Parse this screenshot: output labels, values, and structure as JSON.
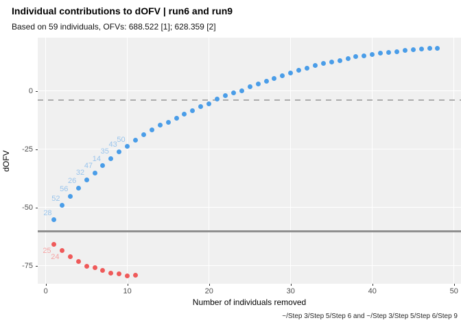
{
  "header": {
    "title": "Individual contributions to dOFV | run6 and run9",
    "subtitle": "Based on 59 individuals, OFVs: 688.522 [1]; 628.359 [2]"
  },
  "caption": "~/Step 3/Step 5/Step 6 and ~/Step 3/Step 5/Step 6/Step 9",
  "colors": {
    "panel_background": "#f0f0f0",
    "gridline": "#ffffff",
    "dashed_reference": "#ababab",
    "solid_reference": "#8f8f8f",
    "blue_point": "#4a9de8",
    "blue_label": "#99c4ec",
    "red_point": "#ef5a5a",
    "red_label": "#f5a3a3",
    "tick_text": "#4d4d4d"
  },
  "chart_data": {
    "type": "scatter",
    "title": "Individual contributions to dOFV | run6 and run9",
    "subtitle": "Based on 59 individuals, OFVs: 688.522 [1]; 628.359 [2]",
    "xlabel": "Number of individuals removed",
    "ylabel": "dOFV",
    "xlim": [
      -0.98,
      50.86
    ],
    "ylim": [
      -82.7,
      22.85
    ],
    "x_ticks": [
      0,
      10,
      20,
      30,
      40,
      50
    ],
    "y_ticks": [
      0,
      -25,
      -50,
      -75
    ],
    "grid": "major-only, white on gray panel",
    "legend": "none",
    "reference_lines": [
      {
        "orientation": "horizontal",
        "value": -3.84,
        "style": "dashed",
        "color": "#ababab",
        "meaning": "significance threshold"
      },
      {
        "orientation": "horizontal",
        "value": -60.163,
        "style": "solid",
        "color": "#8f8f8f",
        "meaning": "total dOFV = 628.359 - 688.522"
      }
    ],
    "series": [
      {
        "name": "cumulative dOFV, individuals favoring run9 (blue)",
        "color": "#4a9de8",
        "label_color": "#99c4ec",
        "label_anchor": "above-left",
        "x": [
          1,
          2,
          3,
          4,
          5,
          6,
          7,
          8,
          9,
          10,
          11,
          12,
          13,
          14,
          15,
          16,
          17,
          18,
          19,
          20,
          21,
          22,
          23,
          24,
          25,
          26,
          27,
          28,
          29,
          30,
          31,
          32,
          33,
          34,
          35,
          36,
          37,
          38,
          39,
          40,
          41,
          42,
          43,
          44,
          45,
          46,
          47,
          48
        ],
        "y": [
          -55.3,
          -49.1,
          -45.2,
          -41.6,
          -38.1,
          -35.1,
          -32.1,
          -29.0,
          -26.1,
          -23.8,
          -21.2,
          -18.7,
          -16.8,
          -14.6,
          -13.4,
          -11.6,
          -9.8,
          -8.5,
          -6.8,
          -5.4,
          -3.6,
          -2.1,
          -0.8,
          0.2,
          1.8,
          2.9,
          4.2,
          5.4,
          6.6,
          7.8,
          8.9,
          9.7,
          11.0,
          11.9,
          12.5,
          13.1,
          13.8,
          14.9,
          15.2,
          15.7,
          16.2,
          16.5,
          16.9,
          17.4,
          17.6,
          18.0,
          18.4,
          18.3
        ],
        "point_labels": {
          "1": "28",
          "2": "52",
          "3": "56",
          "4": "26",
          "5": "32",
          "6": "47",
          "7": "14",
          "8": "35",
          "9": "43",
          "10": "50"
        }
      },
      {
        "name": "cumulative dOFV, individuals favoring run6 (red)",
        "color": "#ef5a5a",
        "label_color": "#f5a3a3",
        "label_anchor": "below-left",
        "x": [
          1,
          2,
          3,
          4,
          5,
          6,
          7,
          8,
          9,
          10,
          11
        ],
        "y": [
          -65.8,
          -68.5,
          -71.1,
          -73.2,
          -75.1,
          -75.9,
          -76.9,
          -78.0,
          -78.5,
          -79.2,
          -79.1
        ],
        "point_labels": {
          "1": "25",
          "2": "24"
        }
      }
    ]
  }
}
